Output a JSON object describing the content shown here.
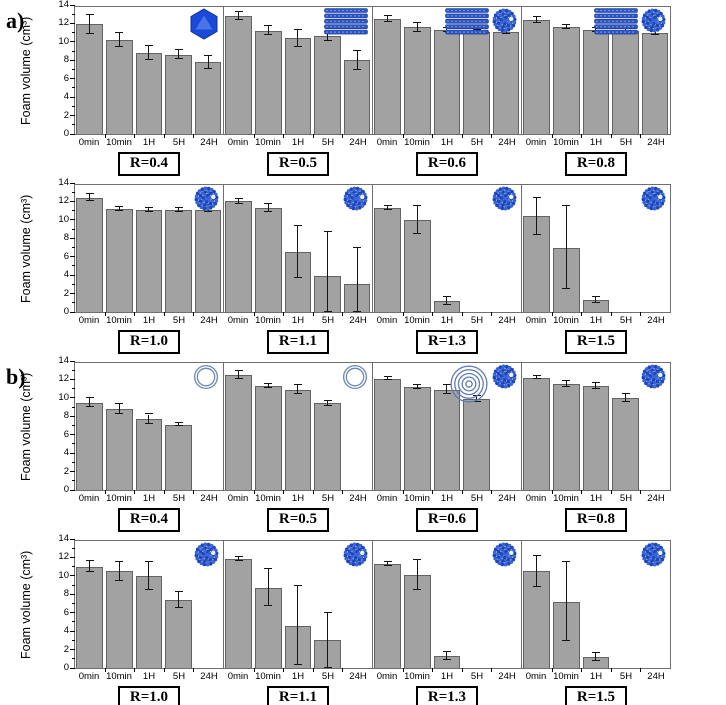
{
  "figure": {
    "ylabel": "Foam volume (cm³)",
    "ylim": [
      0,
      14
    ],
    "y_ticks": [
      0,
      2,
      4,
      6,
      8,
      10,
      12,
      14
    ],
    "x_categories": [
      "0min",
      "10min",
      "1H",
      "5H",
      "24H"
    ],
    "bar_color": "#a2a2a2",
    "bar_edge_color": "#636363",
    "accent_blue": "#2a52c0",
    "panels": [
      {
        "label": "a)"
      },
      {
        "label": "b)"
      }
    ]
  },
  "chart_data": [
    {
      "type": "bar",
      "panel": "a",
      "row": 1,
      "title": "R=0.4",
      "categories": [
        "0min",
        "10min",
        "1H",
        "5H",
        "24H"
      ],
      "values": [
        11.9,
        10.2,
        8.8,
        8.6,
        7.8
      ],
      "errors": [
        1.0,
        0.8,
        0.8,
        0.5,
        0.7
      ],
      "icons": [
        "cubosome"
      ],
      "ylim": [
        0,
        14
      ]
    },
    {
      "type": "bar",
      "panel": "a",
      "row": 1,
      "title": "R=0.5",
      "categories": [
        "0min",
        "10min",
        "1H",
        "5H",
        "24H"
      ],
      "values": [
        12.8,
        11.2,
        10.4,
        10.6,
        8.0
      ],
      "errors": [
        0.4,
        0.5,
        0.9,
        0.5,
        1.0
      ],
      "icons": [
        "lamellar"
      ],
      "ylim": [
        0,
        14
      ]
    },
    {
      "type": "bar",
      "panel": "a",
      "row": 1,
      "title": "R=0.6",
      "categories": [
        "0min",
        "10min",
        "1H",
        "5H",
        "24H"
      ],
      "values": [
        12.5,
        11.6,
        11.3,
        11.1,
        11.1
      ],
      "errors": [
        0.3,
        0.5,
        0.2,
        0.2,
        0.2
      ],
      "icons": [
        "lamellar",
        "micelle"
      ],
      "ylim": [
        0,
        14
      ]
    },
    {
      "type": "bar",
      "panel": "a",
      "row": 1,
      "title": "R=0.8",
      "categories": [
        "0min",
        "10min",
        "1H",
        "5H",
        "24H"
      ],
      "values": [
        12.4,
        11.6,
        11.3,
        11.2,
        11.0
      ],
      "errors": [
        0.3,
        0.2,
        0.2,
        0.3,
        0.3
      ],
      "icons": [
        "lamellar",
        "micelle"
      ],
      "ylim": [
        0,
        14
      ]
    },
    {
      "type": "bar",
      "panel": "a",
      "row": 2,
      "title": "R=1.0",
      "categories": [
        "0min",
        "10min",
        "1H",
        "5H",
        "24H"
      ],
      "values": [
        12.4,
        11.2,
        11.1,
        11.1,
        11.1
      ],
      "errors": [
        0.4,
        0.2,
        0.2,
        0.2,
        0.2
      ],
      "icons": [
        "micelle"
      ],
      "ylim": [
        0,
        14
      ]
    },
    {
      "type": "bar",
      "panel": "a",
      "row": 2,
      "title": "R=1.1",
      "categories": [
        "0min",
        "10min",
        "1H",
        "5H",
        "24H"
      ],
      "values": [
        12.0,
        11.3,
        6.5,
        3.9,
        3.0
      ],
      "errors": [
        0.3,
        0.4,
        2.8,
        4.8,
        4.0
      ],
      "icons": [
        "micelle"
      ],
      "ylim": [
        0,
        14
      ]
    },
    {
      "type": "bar",
      "panel": "a",
      "row": 2,
      "title": "R=1.3",
      "categories": [
        "0min",
        "10min",
        "1H",
        "5H",
        "24H"
      ],
      "values": [
        11.3,
        10.0,
        1.2,
        0,
        0
      ],
      "errors": [
        0.2,
        1.5,
        0.4,
        0,
        0
      ],
      "icons": [
        "micelle"
      ],
      "ylim": [
        0,
        14
      ]
    },
    {
      "type": "bar",
      "panel": "a",
      "row": 2,
      "title": "R=1.5",
      "categories": [
        "0min",
        "10min",
        "1H",
        "5H",
        "24H"
      ],
      "values": [
        10.4,
        7.0,
        1.3,
        0,
        0
      ],
      "errors": [
        2.0,
        4.5,
        0.3,
        0,
        0
      ],
      "icons": [
        "micelle"
      ],
      "ylim": [
        0,
        14
      ]
    },
    {
      "type": "bar",
      "panel": "b",
      "row": 1,
      "title": "R=0.4",
      "categories": [
        "0min",
        "10min",
        "1H",
        "5H",
        "24H"
      ],
      "values": [
        9.5,
        8.8,
        7.7,
        7.1,
        0
      ],
      "errors": [
        0.5,
        0.5,
        0.5,
        0.2,
        0
      ],
      "icons": [
        "vesicle"
      ],
      "ylim": [
        0,
        14
      ]
    },
    {
      "type": "bar",
      "panel": "b",
      "row": 1,
      "title": "R=0.5",
      "categories": [
        "0min",
        "10min",
        "1H",
        "5H",
        "24H"
      ],
      "values": [
        12.5,
        11.3,
        10.9,
        9.4,
        0
      ],
      "errors": [
        0.4,
        0.2,
        0.5,
        0.3,
        0
      ],
      "icons": [
        "vesicle"
      ],
      "ylim": [
        0,
        14
      ]
    },
    {
      "type": "bar",
      "panel": "b",
      "row": 1,
      "title": "R=0.6",
      "categories": [
        "0min",
        "10min",
        "1H",
        "5H",
        "24H"
      ],
      "values": [
        12.1,
        11.2,
        10.9,
        9.9,
        0
      ],
      "errors": [
        0.2,
        0.2,
        0.5,
        0.3,
        0
      ],
      "icons": [
        "multilamellar",
        "micelle"
      ],
      "ylim": [
        0,
        14
      ]
    },
    {
      "type": "bar",
      "panel": "b",
      "row": 1,
      "title": "R=0.8",
      "categories": [
        "0min",
        "10min",
        "1H",
        "5H",
        "24H"
      ],
      "values": [
        12.2,
        11.5,
        11.3,
        10.0,
        0
      ],
      "errors": [
        0.2,
        0.3,
        0.3,
        0.4,
        0
      ],
      "icons": [
        "micelle"
      ],
      "ylim": [
        0,
        14
      ]
    },
    {
      "type": "bar",
      "panel": "b",
      "row": 2,
      "title": "R=1.0",
      "categories": [
        "0min",
        "10min",
        "1H",
        "5H",
        "24H"
      ],
      "values": [
        11.0,
        10.5,
        10.0,
        7.4,
        0
      ],
      "errors": [
        0.6,
        1.0,
        1.5,
        0.9,
        0
      ],
      "icons": [
        "micelle"
      ],
      "ylim": [
        0,
        14
      ]
    },
    {
      "type": "bar",
      "panel": "b",
      "row": 2,
      "title": "R=1.1",
      "categories": [
        "0min",
        "10min",
        "1H",
        "5H",
        "24H"
      ],
      "values": [
        11.8,
        8.7,
        4.6,
        3.0,
        0
      ],
      "errors": [
        0.2,
        2.0,
        4.3,
        3.0,
        0
      ],
      "icons": [
        "micelle"
      ],
      "ylim": [
        0,
        14
      ]
    },
    {
      "type": "bar",
      "panel": "b",
      "row": 2,
      "title": "R=1.3",
      "categories": [
        "0min",
        "10min",
        "1H",
        "5H",
        "24H"
      ],
      "values": [
        11.3,
        10.1,
        1.3,
        0,
        0
      ],
      "errors": [
        0.2,
        1.6,
        0.4,
        0,
        0
      ],
      "icons": [
        "micelle"
      ],
      "ylim": [
        0,
        14
      ]
    },
    {
      "type": "bar",
      "panel": "b",
      "row": 2,
      "title": "R=1.5",
      "categories": [
        "0min",
        "10min",
        "1H",
        "5H",
        "24H"
      ],
      "values": [
        10.5,
        7.2,
        1.2,
        0,
        0
      ],
      "errors": [
        1.7,
        4.3,
        0.4,
        0,
        0
      ],
      "icons": [
        "micelle"
      ],
      "ylim": [
        0,
        14
      ]
    }
  ]
}
